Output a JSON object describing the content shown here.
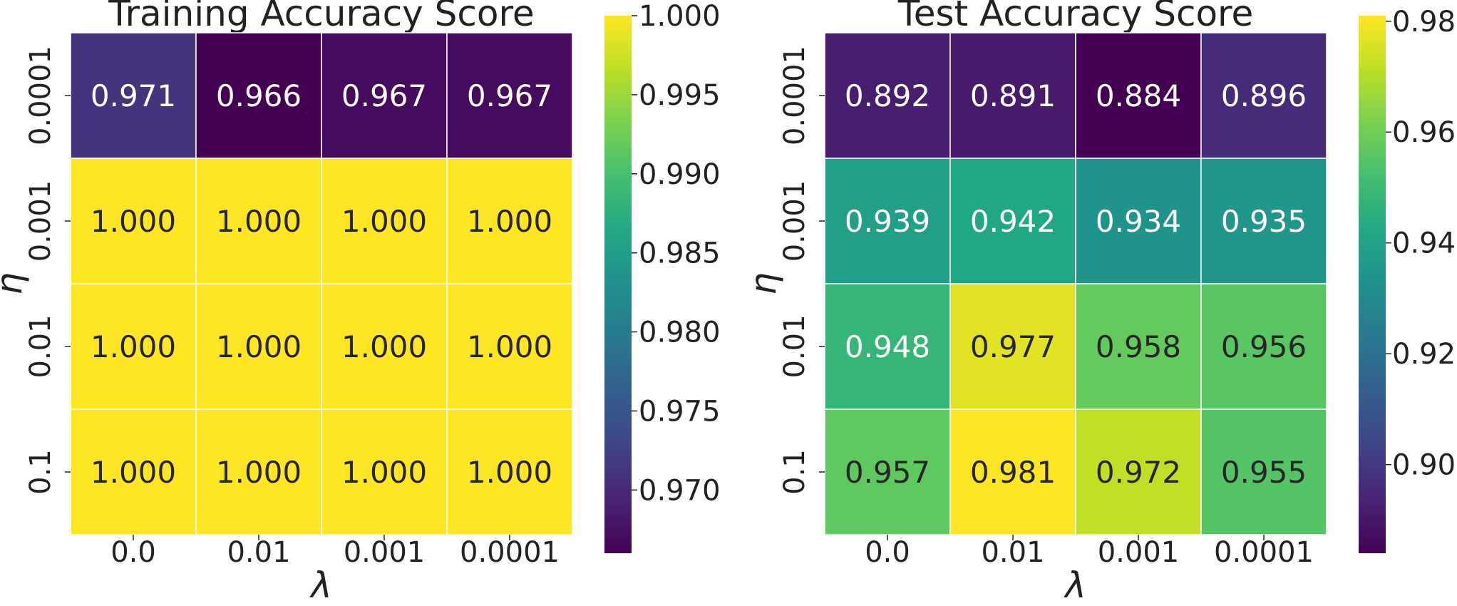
{
  "chart_data": [
    {
      "type": "heatmap",
      "title": "Training Accuracy Score",
      "xlabel": "λ",
      "ylabel": "η",
      "x_categories": [
        "0.0",
        "0.01",
        "0.001",
        "0.0001"
      ],
      "y_categories": [
        "0.0001",
        "0.001",
        "0.01",
        "0.1"
      ],
      "values": [
        [
          0.971,
          0.966,
          0.967,
          0.967
        ],
        [
          1.0,
          1.0,
          1.0,
          1.0
        ],
        [
          1.0,
          1.0,
          1.0,
          1.0
        ],
        [
          1.0,
          1.0,
          1.0,
          1.0
        ]
      ],
      "cell_labels": [
        [
          "0.971",
          "0.966",
          "0.967",
          "0.967"
        ],
        [
          "1.000",
          "1.000",
          "1.000",
          "1.000"
        ],
        [
          "1.000",
          "1.000",
          "1.000",
          "1.000"
        ],
        [
          "1.000",
          "1.000",
          "1.000",
          "1.000"
        ]
      ],
      "colormap": "viridis",
      "colorbar": {
        "range": [
          0.966,
          1.0
        ],
        "ticks": [
          0.97,
          0.975,
          0.98,
          0.985,
          0.99,
          0.995,
          1.0
        ],
        "tick_labels": [
          "0.970",
          "0.975",
          "0.980",
          "0.985",
          "0.990",
          "0.995",
          "1.000"
        ]
      }
    },
    {
      "type": "heatmap",
      "title": "Test Accuracy Score",
      "xlabel": "λ",
      "ylabel": "η",
      "x_categories": [
        "0.0",
        "0.01",
        "0.001",
        "0.0001"
      ],
      "y_categories": [
        "0.0001",
        "0.001",
        "0.01",
        "0.1"
      ],
      "values": [
        [
          0.892,
          0.891,
          0.884,
          0.896
        ],
        [
          0.939,
          0.942,
          0.934,
          0.935
        ],
        [
          0.948,
          0.977,
          0.958,
          0.956
        ],
        [
          0.957,
          0.981,
          0.972,
          0.955
        ]
      ],
      "cell_labels": [
        [
          "0.892",
          "0.891",
          "0.884",
          "0.896"
        ],
        [
          "0.939",
          "0.942",
          "0.934",
          "0.935"
        ],
        [
          "0.948",
          "0.977",
          "0.958",
          "0.956"
        ],
        [
          "0.957",
          "0.981",
          "0.972",
          "0.955"
        ]
      ],
      "colormap": "viridis",
      "colorbar": {
        "range": [
          0.884,
          0.981
        ],
        "ticks": [
          0.9,
          0.92,
          0.94,
          0.96,
          0.98
        ],
        "tick_labels": [
          "0.90",
          "0.92",
          "0.94",
          "0.96",
          "0.98"
        ]
      }
    }
  ]
}
